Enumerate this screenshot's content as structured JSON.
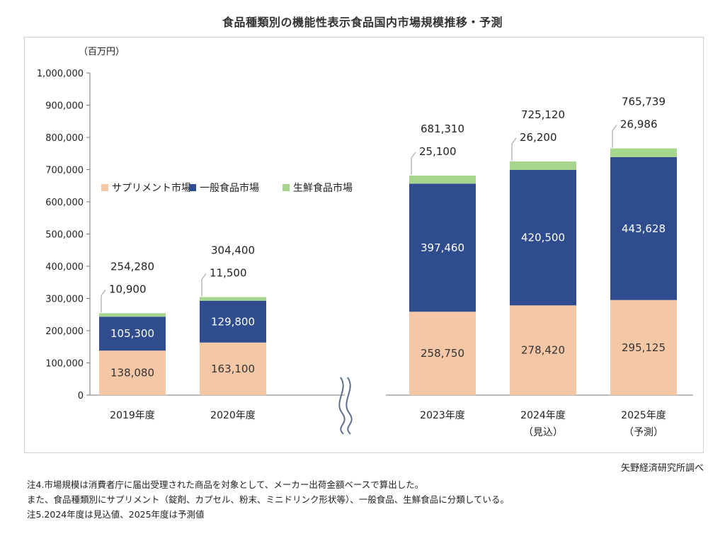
{
  "title": "食品種類別の機能性表示食品国内市場規模推移・予測",
  "unit": "（百万円）",
  "source": "矢野経済研究所調べ",
  "notes": [
    "注4.市場規模は消費者庁に届出受理された商品を対象として、メーカー出荷金額ベースで算出した。",
    "また、食品種類別にサプリメント（錠剤、カプセル、粉末、ミニドリンク形状等）、一般食品、生鮮食品に分類している。",
    "注5.2024年度は見込値、2025年度は予測値"
  ],
  "chart_data": {
    "type": "bar",
    "stacked": true,
    "categories": [
      "2019年度",
      "2020年度",
      "2023年度",
      "2024年度",
      "2025年度"
    ],
    "category_sublabels": [
      "",
      "",
      "",
      "（見込）",
      "（予測）"
    ],
    "axis_break_between": [
      "2020年度",
      "2023年度"
    ],
    "ylim": [
      0,
      1000000
    ],
    "yticks": [
      0,
      100000,
      200000,
      300000,
      400000,
      500000,
      600000,
      700000,
      800000,
      900000,
      1000000
    ],
    "ytick_labels": [
      "0",
      "100,000",
      "200,000",
      "300,000",
      "400,000",
      "500,000",
      "600,000",
      "700,000",
      "800,000",
      "900,000",
      "1,000,000"
    ],
    "legend_position": "left, upper middle",
    "series": [
      {
        "name": "サプリメント市場",
        "color": "#f4c7a6",
        "values": [
          138080,
          163100,
          258750,
          278420,
          295125
        ],
        "labels": [
          "138,080",
          "163,100",
          "258,750",
          "278,420",
          "295,125"
        ]
      },
      {
        "name": "一般食品市場",
        "color": "#2f4d8e",
        "values": [
          105300,
          129800,
          397460,
          420500,
          443628
        ],
        "labels": [
          "105,300",
          "129,800",
          "397,460",
          "420,500",
          "443,628"
        ]
      },
      {
        "name": "生鮮食品市場",
        "color": "#a6d58e",
        "values": [
          10900,
          11500,
          25100,
          26200,
          26986
        ],
        "labels": [
          "10,900",
          "11,500",
          "25,100",
          "26,200",
          "26,986"
        ]
      }
    ],
    "totals": [
      254280,
      304400,
      681310,
      725120,
      765739
    ],
    "total_labels": [
      "254,280",
      "304,400",
      "681,310",
      "725,120",
      "765,739"
    ]
  }
}
